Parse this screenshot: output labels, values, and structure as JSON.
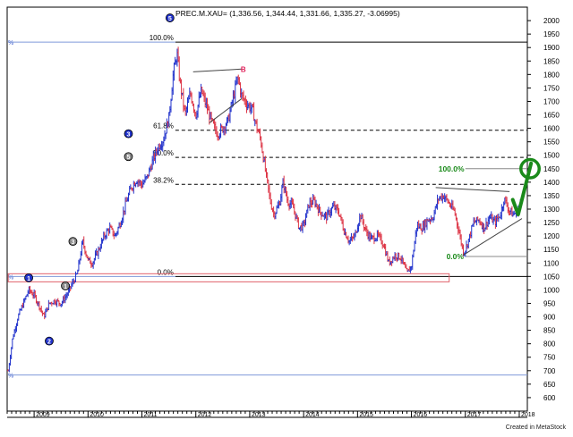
{
  "chart_data": {
    "type": "bar",
    "title": "PREC.M.XAU= (1,336.56, 1,344.44, 1,331.66, 1,335.27, -3.06995)",
    "symbol": "PREC.M.XAU=",
    "ohlc_summary": {
      "open": 1336.56,
      "high": 1344.44,
      "low": 1331.66,
      "close": 1335.27,
      "change": -3.06995
    },
    "x_range": [
      2008.5,
      2018.15
    ],
    "ylim": [
      550,
      2050
    ],
    "y_ticks": [
      600,
      650,
      700,
      750,
      800,
      850,
      900,
      950,
      1000,
      1050,
      1100,
      1150,
      1200,
      1250,
      1300,
      1350,
      1400,
      1450,
      1500,
      1550,
      1600,
      1650,
      1700,
      1750,
      1800,
      1850,
      1900,
      1950,
      2000
    ],
    "x_ticks": [
      {
        "label": "2009",
        "x": 2009.0
      },
      {
        "label": "2010",
        "x": 2010.0
      },
      {
        "label": "2011",
        "x": 2011.0
      },
      {
        "label": "2012",
        "x": 2012.0
      },
      {
        "label": "2013",
        "x": 2013.0
      },
      {
        "label": "2014",
        "x": 2014.0
      },
      {
        "label": "2015",
        "x": 2015.0
      },
      {
        "label": "2016",
        "x": 2016.0
      },
      {
        "label": "2017",
        "x": 2017.0
      },
      {
        "label": "2018",
        "x": 2018.0
      }
    ],
    "price_path": [
      [
        2008.52,
        700
      ],
      [
        2008.6,
        820
      ],
      [
        2008.7,
        900
      ],
      [
        2008.8,
        950
      ],
      [
        2008.9,
        1000
      ],
      [
        2009.0,
        980
      ],
      [
        2009.1,
        940
      ],
      [
        2009.18,
        900
      ],
      [
        2009.28,
        950
      ],
      [
        2009.38,
        960
      ],
      [
        2009.5,
        950
      ],
      [
        2009.6,
        980
      ],
      [
        2009.7,
        1020
      ],
      [
        2009.8,
        1060
      ],
      [
        2009.9,
        1180
      ],
      [
        2010.0,
        1110
      ],
      [
        2010.08,
        1100
      ],
      [
        2010.2,
        1150
      ],
      [
        2010.3,
        1200
      ],
      [
        2010.4,
        1230
      ],
      [
        2010.5,
        1200
      ],
      [
        2010.6,
        1250
      ],
      [
        2010.7,
        1320
      ],
      [
        2010.8,
        1380
      ],
      [
        2010.9,
        1410
      ],
      [
        2011.0,
        1390
      ],
      [
        2011.1,
        1420
      ],
      [
        2011.2,
        1480
      ],
      [
        2011.3,
        1530
      ],
      [
        2011.4,
        1560
      ],
      [
        2011.5,
        1640
      ],
      [
        2011.58,
        1800
      ],
      [
        2011.65,
        1880
      ],
      [
        2011.7,
        1780
      ],
      [
        2011.8,
        1650
      ],
      [
        2011.9,
        1730
      ],
      [
        2012.0,
        1650
      ],
      [
        2012.1,
        1740
      ],
      [
        2012.2,
        1680
      ],
      [
        2012.3,
        1620
      ],
      [
        2012.4,
        1580
      ],
      [
        2012.5,
        1600
      ],
      [
        2012.6,
        1630
      ],
      [
        2012.7,
        1720
      ],
      [
        2012.78,
        1790
      ],
      [
        2012.85,
        1720
      ],
      [
        2012.95,
        1690
      ],
      [
        2013.05,
        1670
      ],
      [
        2013.12,
        1610
      ],
      [
        2013.2,
        1560
      ],
      [
        2013.3,
        1430
      ],
      [
        2013.38,
        1330
      ],
      [
        2013.45,
        1280
      ],
      [
        2013.55,
        1320
      ],
      [
        2013.62,
        1400
      ],
      [
        2013.7,
        1330
      ],
      [
        2013.8,
        1310
      ],
      [
        2013.92,
        1230
      ],
      [
        2014.0,
        1240
      ],
      [
        2014.1,
        1320
      ],
      [
        2014.2,
        1330
      ],
      [
        2014.3,
        1290
      ],
      [
        2014.42,
        1270
      ],
      [
        2014.55,
        1310
      ],
      [
        2014.65,
        1290
      ],
      [
        2014.75,
        1220
      ],
      [
        2014.85,
        1180
      ],
      [
        2014.95,
        1200
      ],
      [
        2015.05,
        1280
      ],
      [
        2015.15,
        1220
      ],
      [
        2015.25,
        1190
      ],
      [
        2015.38,
        1200
      ],
      [
        2015.48,
        1170
      ],
      [
        2015.58,
        1100
      ],
      [
        2015.7,
        1130
      ],
      [
        2015.8,
        1120
      ],
      [
        2015.92,
        1060
      ],
      [
        2016.0,
        1090
      ],
      [
        2016.1,
        1240
      ],
      [
        2016.2,
        1230
      ],
      [
        2016.3,
        1260
      ],
      [
        2016.4,
        1270
      ],
      [
        2016.5,
        1340
      ],
      [
        2016.6,
        1350
      ],
      [
        2016.7,
        1320
      ],
      [
        2016.8,
        1290
      ],
      [
        2016.9,
        1200
      ],
      [
        2016.96,
        1140
      ],
      [
        2017.0,
        1150
      ],
      [
        2017.08,
        1200
      ],
      [
        2017.15,
        1250
      ],
      [
        2017.25,
        1260
      ],
      [
        2017.35,
        1230
      ],
      [
        2017.45,
        1270
      ],
      [
        2017.55,
        1250
      ],
      [
        2017.65,
        1280
      ],
      [
        2017.72,
        1340
      ],
      [
        2017.8,
        1300
      ],
      [
        2017.88,
        1280
      ],
      [
        2017.96,
        1290
      ],
      [
        2018.05,
        1335
      ]
    ],
    "horizontal_lines": [
      {
        "label": "100.0%",
        "y": 1920,
        "style": "solid",
        "color": "#000000",
        "x_from": 2011.62,
        "x_to": 2018.15
      },
      {
        "label": "61.8%",
        "y": 1593,
        "style": "dashed",
        "color": "#000000",
        "x_from": 2011.62,
        "x_to": 2018.15
      },
      {
        "label": "50.0%",
        "y": 1492,
        "style": "dashed",
        "color": "#000000",
        "x_from": 2011.62,
        "x_to": 2018.15
      },
      {
        "label": "38.2%",
        "y": 1392,
        "style": "dashed",
        "color": "#000000",
        "x_from": 2011.62,
        "x_to": 2018.15
      },
      {
        "label": "0.0%",
        "y": 1050,
        "style": "solid",
        "color": "#000000",
        "x_from": 2011.62,
        "x_to": 2018.15
      },
      {
        "label": "100.0%",
        "y": 1450,
        "style": "solid",
        "color": "#888888",
        "x_from": 2017.0,
        "x_to": 2018.15
      },
      {
        "label": "0.0%",
        "y": 1124,
        "style": "solid",
        "color": "#888888",
        "x_from": 2017.0,
        "x_to": 2018.15
      },
      {
        "label": "",
        "y": 1920,
        "style": "solid",
        "color": "#7f9ad9",
        "x_from": 2008.52,
        "x_to": 2011.62
      },
      {
        "label": "",
        "y": 1050,
        "style": "solid",
        "color": "#7f9ad9",
        "x_from": 2008.52,
        "x_to": 2011.62
      },
      {
        "label": "",
        "y": 684,
        "style": "solid",
        "color": "#7f9ad9",
        "x_from": 2008.52,
        "x_to": 2018.15
      }
    ],
    "fib_label_colors": {
      "main": "#000000",
      "secondary": "#1a8a1a"
    },
    "rectangle": {
      "x_from": 2008.52,
      "x_to": 2016.7,
      "y_from": 1060,
      "y_to": 1030,
      "color": "#e0606a"
    },
    "trendlines": [
      {
        "x1": 2011.95,
        "y1": 1810,
        "x2": 2012.85,
        "y2": 1820,
        "color": "#444444"
      },
      {
        "x1": 2012.25,
        "y1": 1620,
        "x2": 2012.85,
        "y2": 1710,
        "color": "#444444"
      },
      {
        "x1": 2016.45,
        "y1": 1380,
        "x2": 2017.82,
        "y2": 1365,
        "color": "#444444"
      },
      {
        "x1": 2016.95,
        "y1": 1128,
        "x2": 2018.05,
        "y2": 1265,
        "color": "#444444"
      }
    ],
    "wave_labels": [
      {
        "text": "5",
        "x": 2011.52,
        "y": 2010,
        "style": "circle-blue"
      },
      {
        "text": "B",
        "x": 2012.88,
        "y": 1820,
        "style": "text-red"
      },
      {
        "text": "3",
        "x": 2010.75,
        "y": 1580,
        "style": "circle-blue"
      },
      {
        "text": "5",
        "x": 2010.75,
        "y": 1495,
        "style": "circle-gray"
      },
      {
        "text": "3",
        "x": 2009.72,
        "y": 1180,
        "style": "circle-gray"
      },
      {
        "text": "1",
        "x": 2008.9,
        "y": 1045,
        "style": "circle-blue"
      },
      {
        "text": "1",
        "x": 2009.58,
        "y": 1015,
        "style": "circle-gray"
      },
      {
        "text": "2",
        "x": 2009.28,
        "y": 810,
        "style": "circle-blue"
      }
    ],
    "annotations": {
      "green_labels": [
        {
          "text": "100.0%",
          "x": 2017.03,
          "y": 1450
        },
        {
          "text": "0.0%",
          "x": 2017.02,
          "y": 1124
        }
      ],
      "circle": {
        "x": 2018.2,
        "y": 1450,
        "rx_years": 0.17,
        "ry_price": 34,
        "color": "#1a8a1a"
      },
      "checkmark": {
        "points": [
          [
            2017.88,
            1335
          ],
          [
            2017.98,
            1280
          ],
          [
            2018.22,
            1470
          ]
        ],
        "color": "#1a8a1a"
      }
    },
    "bar_colors": {
      "up": "#2233cc",
      "down": "#dd3344"
    },
    "grid": false,
    "left_markers": [
      {
        "text": "%",
        "y": 1920
      },
      {
        "text": "%",
        "y": 1050
      },
      {
        "text": "%",
        "y": 684
      }
    ]
  },
  "footer": {
    "credit": "Created in MetaStock"
  }
}
